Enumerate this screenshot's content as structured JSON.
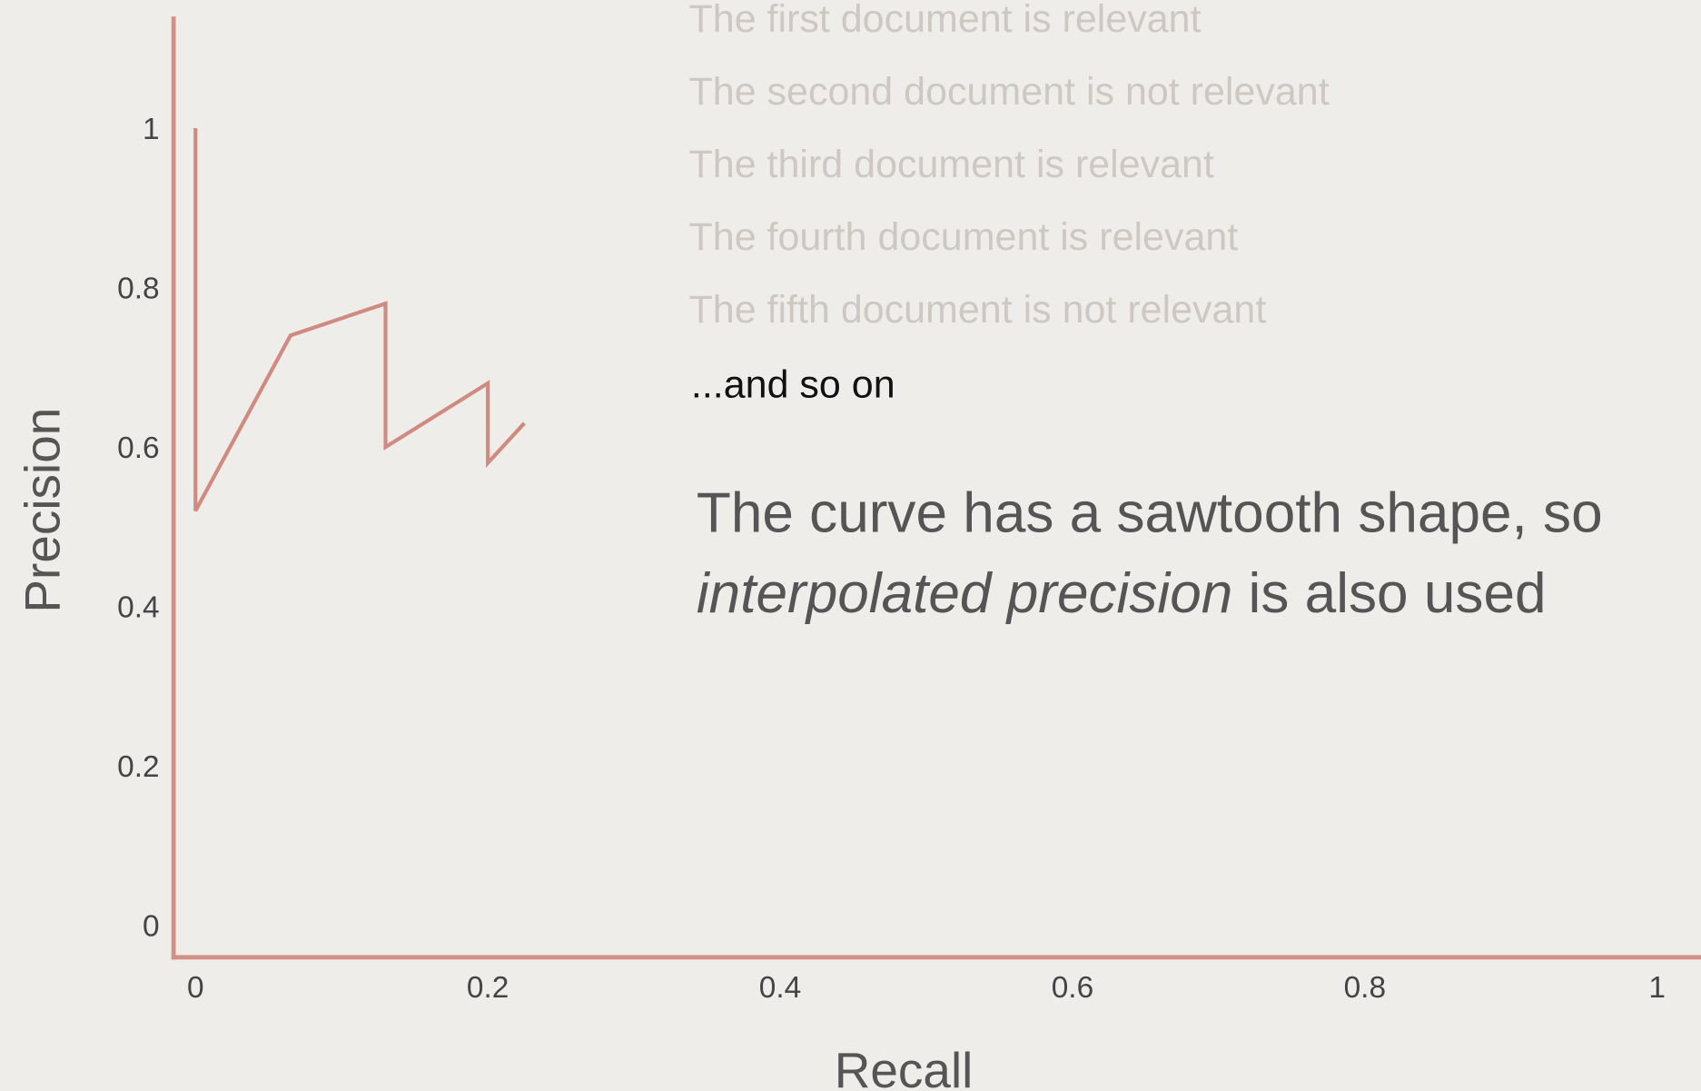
{
  "chart_data": {
    "type": "line",
    "x_label": "Recall",
    "y_label": "Precision",
    "x": [
      0,
      0,
      0.065,
      0.13,
      0.13,
      0.2,
      0.2,
      0.225
    ],
    "values": [
      1,
      0.52,
      0.74,
      0.78,
      0.6,
      0.68,
      0.58,
      0.63
    ],
    "color": "#d08a80",
    "xlim": [
      -0.015,
      1.03
    ],
    "ylim": [
      -0.04,
      1.14
    ],
    "xticks": [
      0,
      0.2,
      0.4,
      0.6,
      0.8,
      1
    ],
    "yticks": [
      0,
      0.2,
      0.4,
      0.6,
      0.8,
      1
    ],
    "grid": false
  },
  "steps": [
    "The first document is relevant",
    "The second document is not relevant",
    "The third document is relevant",
    "The fourth document is relevant",
    "The fifth document is not relevant"
  ],
  "continuation": "...and so on",
  "note": {
    "line1": "The curve has a sawtooth shape, so",
    "italic": "interpolated precision",
    "rest": " is also used"
  }
}
